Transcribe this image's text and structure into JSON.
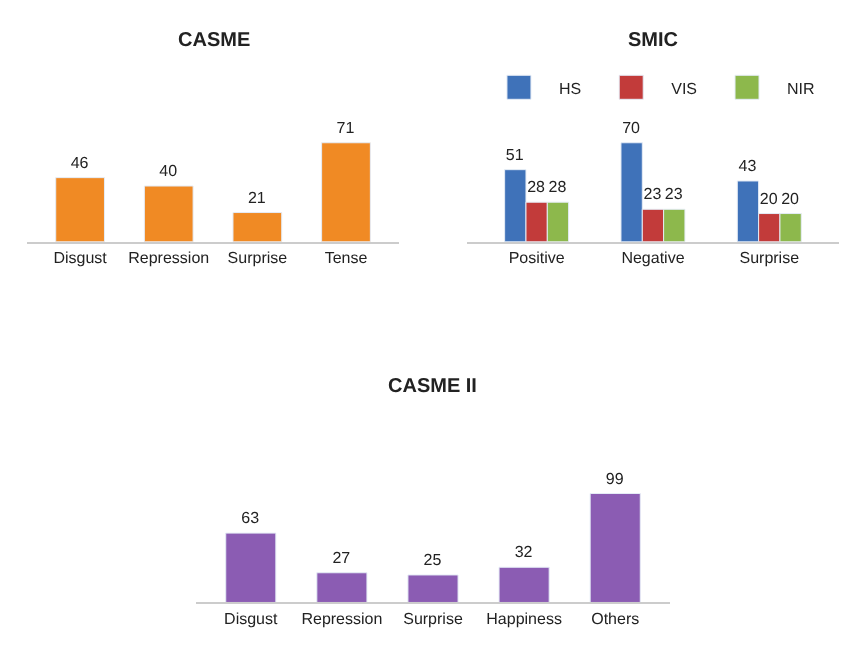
{
  "chart_data": [
    {
      "type": "bar",
      "title": "CASME",
      "categories": [
        "Disgust",
        "Repression",
        "Surprise",
        "Tense"
      ],
      "values": [
        46,
        40,
        21,
        71
      ],
      "color": "#f08a24",
      "data_labels": true
    },
    {
      "type": "bar",
      "title": "SMIC",
      "categories": [
        "Positive",
        "Negative",
        "Surprise"
      ],
      "series": [
        {
          "name": "HS",
          "color": "#3f72b9",
          "values": [
            51,
            70,
            43
          ]
        },
        {
          "name": "VIS",
          "color": "#c23b3a",
          "values": [
            28,
            23,
            20
          ]
        },
        {
          "name": "NIR",
          "color": "#8db84c",
          "values": [
            28,
            23,
            20
          ]
        }
      ],
      "legend": "top",
      "data_labels": true
    },
    {
      "type": "bar",
      "title": "CASME II",
      "categories": [
        "Disgust",
        "Repression",
        "Surprise",
        "Happiness",
        "Others"
      ],
      "values": [
        63,
        27,
        25,
        32,
        99
      ],
      "color": "#8b5cb3",
      "data_labels": true
    }
  ]
}
